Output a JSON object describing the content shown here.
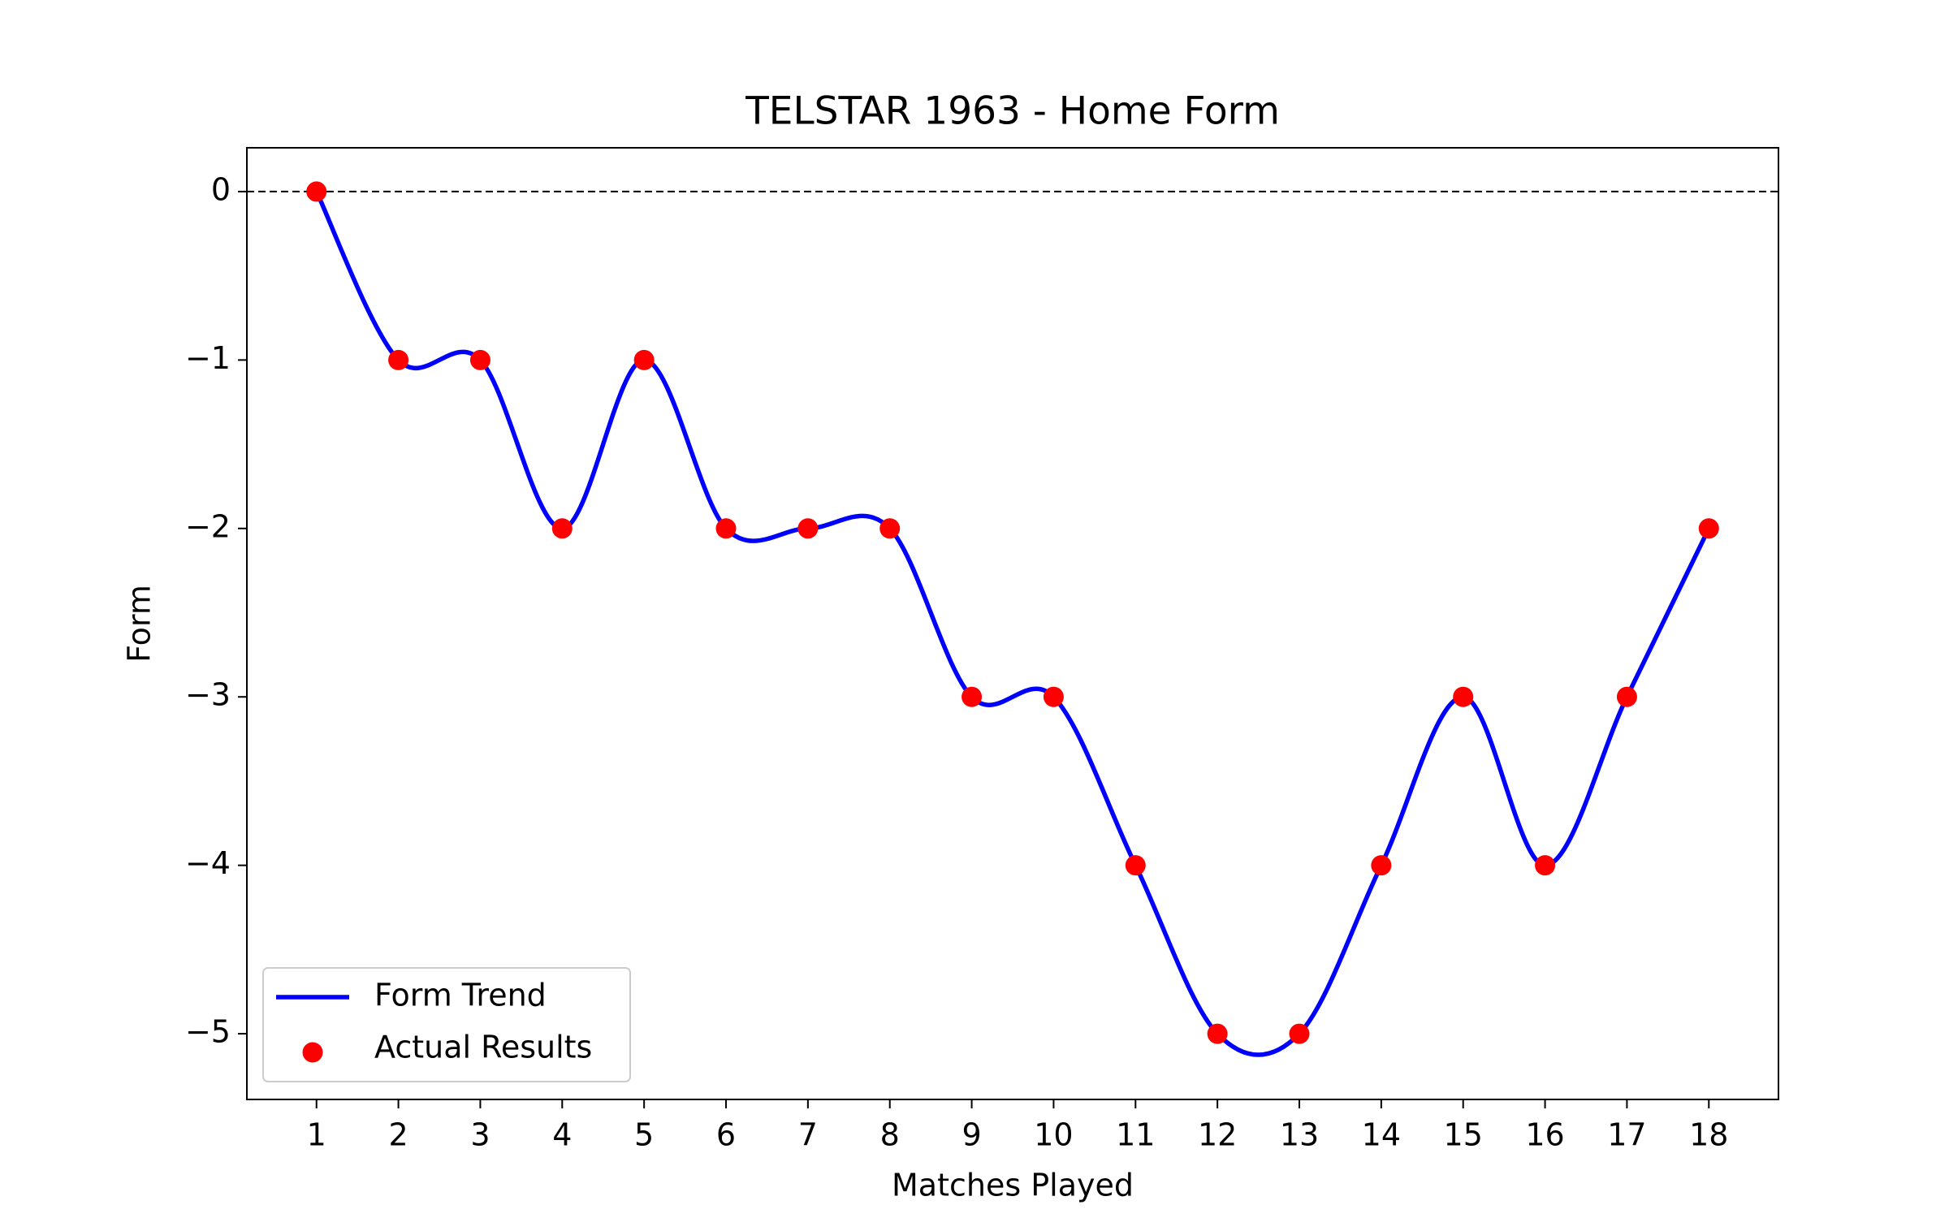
{
  "chart_data": {
    "type": "line",
    "title": "TELSTAR 1963 - Home Form",
    "xlabel": "Matches Played",
    "ylabel": "Form",
    "x": [
      1,
      2,
      3,
      4,
      5,
      6,
      7,
      8,
      9,
      10,
      11,
      12,
      13,
      14,
      15,
      16,
      17,
      18
    ],
    "series": [
      {
        "name": "Form Trend",
        "type": "line",
        "color": "#0000ff",
        "smooth": true,
        "values": [
          0,
          -1,
          -1,
          -2,
          -1,
          -2,
          -2,
          -2,
          -3,
          -3,
          -4,
          -5,
          -5,
          -4,
          -3,
          -4,
          -3,
          -2
        ]
      },
      {
        "name": "Actual Results",
        "type": "scatter",
        "color": "#ff0000",
        "values": [
          0,
          -1,
          -1,
          -2,
          -1,
          -2,
          -2,
          -2,
          -3,
          -3,
          -4,
          -5,
          -5,
          -4,
          -3,
          -4,
          -3,
          -2
        ]
      }
    ],
    "xlim": [
      0.15,
      18.85
    ],
    "ylim": [
      -5.39,
      0.26
    ],
    "xticks": [
      1,
      2,
      3,
      4,
      5,
      6,
      7,
      8,
      9,
      10,
      11,
      12,
      13,
      14,
      15,
      16,
      17,
      18
    ],
    "yticks": [
      0,
      {
        "value": -1,
        "label": "−1"
      },
      {
        "value": -2,
        "label": "−2"
      },
      {
        "value": -3,
        "label": "−3"
      },
      {
        "value": -4,
        "label": "−4"
      },
      {
        "value": -5,
        "label": "−5"
      }
    ],
    "reference_line": {
      "y": 0,
      "style": "dashed",
      "color": "#000000"
    },
    "grid": false,
    "legend": "lower left"
  }
}
